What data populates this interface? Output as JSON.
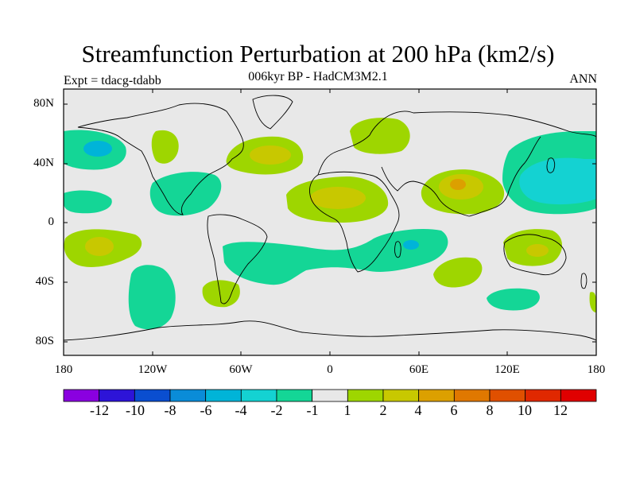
{
  "title": "Streamfunction Perturbation at 200 hPa (km2/s)",
  "subtitle": "006kyr BP - HadCM3M2.1",
  "left_label": "Expt = tdacg-tdabb",
  "right_label": "ANN",
  "y_axis": {
    "ticks": [
      "80N",
      "40N",
      "0",
      "40S",
      "80S"
    ]
  },
  "x_axis": {
    "ticks": [
      "180",
      "120W",
      "60W",
      "0",
      "60E",
      "120E",
      "180"
    ]
  },
  "colorbar": {
    "colors": [
      "#8a00e0",
      "#2d14d8",
      "#0a4ed0",
      "#0a8cd8",
      "#00b4d8",
      "#14d2d2",
      "#14d696",
      "#e8e8e8",
      "#9ed600",
      "#c8c800",
      "#dca000",
      "#e07800",
      "#e05000",
      "#e02800",
      "#e00000"
    ],
    "labels": [
      "-12",
      "-10",
      "-8",
      "-6",
      "-4",
      "-2",
      "-1",
      "1",
      "2",
      "4",
      "6",
      "8",
      "10",
      "12"
    ]
  },
  "chart_data": {
    "type": "map",
    "field": "Streamfunction Perturbation at 200 hPa",
    "units": "km2/s",
    "period": "ANN",
    "experiment": "tdacg-tdabb",
    "x_range": [
      -180,
      180
    ],
    "y_range": [
      -90,
      90
    ],
    "contour_levels": [
      -12,
      -10,
      -8,
      -6,
      -4,
      -2,
      -1,
      1,
      2,
      4,
      6,
      8,
      10,
      12
    ],
    "anomalies": [
      {
        "lon": -135,
        "lat": 48,
        "value": -2
      },
      {
        "lon": -155,
        "lat": 47,
        "value": -4
      },
      {
        "lon": -105,
        "lat": 57,
        "value": 2
      },
      {
        "lon": -145,
        "lat": 15,
        "value": -1
      },
      {
        "lon": -90,
        "lat": 20,
        "value": -1
      },
      {
        "lon": -38,
        "lat": 47,
        "value": 4
      },
      {
        "lon": 25,
        "lat": 18,
        "value": 4
      },
      {
        "lon": 88,
        "lat": 25,
        "value": 6
      },
      {
        "lon": 48,
        "lat": 60,
        "value": 2
      },
      {
        "lon": 155,
        "lat": 22,
        "value": -4
      },
      {
        "lon": -150,
        "lat": -15,
        "value": 4
      },
      {
        "lon": -120,
        "lat": -55,
        "value": -2
      },
      {
        "lon": -65,
        "lat": -45,
        "value": 2
      },
      {
        "lon": 10,
        "lat": -25,
        "value": -2
      },
      {
        "lon": 55,
        "lat": -13,
        "value": -4
      },
      {
        "lon": 90,
        "lat": -25,
        "value": 2
      },
      {
        "lon": 140,
        "lat": -18,
        "value": 4
      },
      {
        "lon": 130,
        "lat": -50,
        "value": -2
      }
    ]
  }
}
